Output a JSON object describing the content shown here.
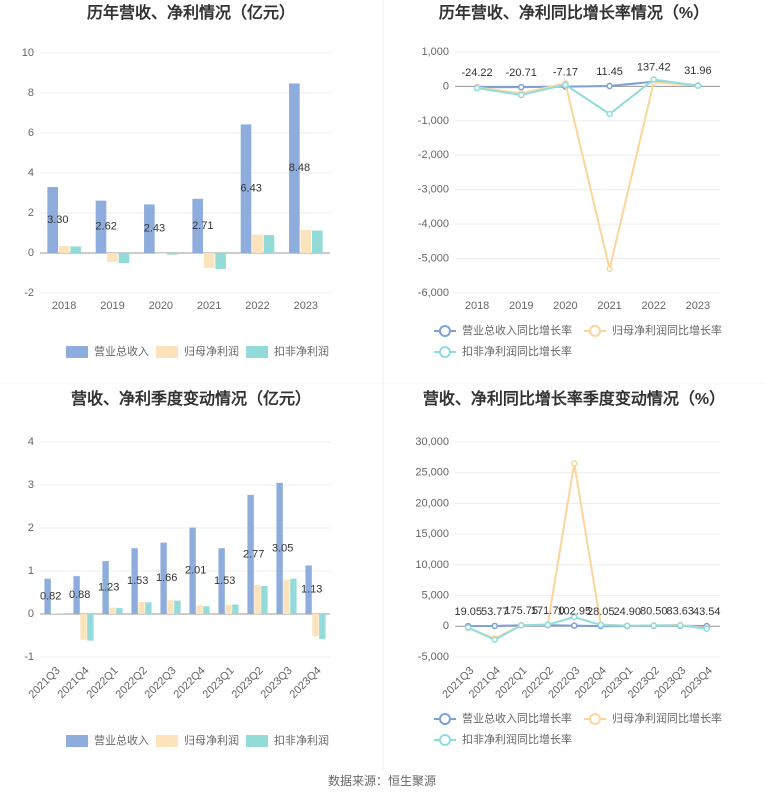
{
  "source": "数据来源：恒生聚源",
  "chart_data": [
    {
      "type": "bar",
      "title": "历年营收、净利情况（亿元）",
      "categories": [
        "2018",
        "2019",
        "2020",
        "2021",
        "2022",
        "2023"
      ],
      "series": [
        {
          "name": "营业总收入",
          "color": "#8eaddc",
          "values": [
            3.3,
            2.62,
            2.43,
            2.71,
            6.43,
            8.48
          ],
          "value_labels": [
            "3.30",
            "2.62",
            "2.43",
            "2.71",
            "6.43",
            "8.48"
          ]
        },
        {
          "name": "归母净利润",
          "color": "#fde3bb",
          "values": [
            0.35,
            -0.45,
            -0.05,
            -0.75,
            0.92,
            1.15
          ]
        },
        {
          "name": "扣非净利润",
          "color": "#92dbd9",
          "values": [
            0.33,
            -0.5,
            -0.08,
            -0.8,
            0.9,
            1.12
          ]
        }
      ],
      "ylim": [
        -2,
        10
      ],
      "yticks": [
        -2,
        0,
        2,
        4,
        6,
        8,
        10
      ],
      "grid": true,
      "legend": "bottom"
    },
    {
      "type": "line",
      "title": "历年营收、净利同比增长率情况（%）",
      "categories": [
        "2018",
        "2019",
        "2020",
        "2021",
        "2022",
        "2023"
      ],
      "series": [
        {
          "name": "营业总收入同比增长率",
          "color": "#7f9fd6",
          "values": [
            -24.22,
            -20.71,
            -7.17,
            11.45,
            137.42,
            31.96
          ]
        },
        {
          "name": "归母净利润同比增长率",
          "color": "#fcd59c",
          "values": [
            -30,
            -200,
            90,
            -5300,
            120,
            25
          ]
        },
        {
          "name": "扣非净利润同比增长率",
          "color": "#8fdcdf",
          "values": [
            -50,
            -250,
            50,
            -800,
            200,
            20
          ]
        }
      ],
      "ylim": [
        -6000,
        1000
      ],
      "yticks": [
        {
          "value": -6000,
          "label": "-6,000"
        },
        {
          "value": -5000,
          "label": "-5,000"
        },
        {
          "value": -4000,
          "label": "-4,000"
        },
        {
          "value": -3000,
          "label": "-3,000"
        },
        {
          "value": -2000,
          "label": "-2,000"
        },
        {
          "value": -1000,
          "label": "-1,000"
        },
        0,
        {
          "value": 1000,
          "label": "1,000"
        }
      ],
      "grid": true,
      "legend": "bottom"
    },
    {
      "type": "bar",
      "title": "营收、净利季度变动情况（亿元）",
      "categories": [
        "2021Q3",
        "2021Q4",
        "2022Q1",
        "2022Q2",
        "2022Q3",
        "2022Q4",
        "2023Q1",
        "2023Q2",
        "2023Q3",
        "2023Q4"
      ],
      "series": [
        {
          "name": "营业总收入",
          "color": "#8eaddc",
          "values": [
            0.82,
            0.88,
            1.23,
            1.53,
            1.66,
            2.01,
            1.53,
            2.77,
            3.05,
            1.13
          ]
        },
        {
          "name": "归母净利润",
          "color": "#fde3bb",
          "values": [
            0.02,
            -0.6,
            0.15,
            0.28,
            0.32,
            0.2,
            0.22,
            0.67,
            0.8,
            -0.52
          ]
        },
        {
          "name": "扣非净利润",
          "color": "#92dbd9",
          "values": [
            0.01,
            -0.62,
            0.14,
            0.27,
            0.31,
            0.18,
            0.22,
            0.65,
            0.82,
            -0.58
          ]
        }
      ],
      "ylim": [
        -1,
        4
      ],
      "yticks": [
        -1,
        0,
        1,
        2,
        3,
        4
      ],
      "grid": true,
      "legend": "bottom"
    },
    {
      "type": "line",
      "title": "营收、净利同比增长率季度变动情况（%）",
      "categories": [
        "2021Q3",
        "2021Q4",
        "2022Q1",
        "2022Q2",
        "2022Q3",
        "2022Q4",
        "2023Q1",
        "2023Q2",
        "2023Q3",
        "2023Q4"
      ],
      "series": [
        {
          "name": "营业总收入同比增长率",
          "color": "#7f9fd6",
          "values": [
            19.05,
            53.77,
            175.75,
            171.7,
            102.95,
            28.05,
            24.9,
            80.5,
            83.63,
            43.54
          ],
          "value_labels": [
            "19.05",
            "53.77",
            "175.75",
            "171.70",
            "102.95",
            "28.05",
            "24.90",
            "80.50",
            "83.63",
            "43.54"
          ]
        },
        {
          "name": "归母净利润同比增长率",
          "color": "#fcd59c",
          "values": [
            -300,
            -2000,
            200,
            300,
            26500,
            300,
            100,
            150,
            200,
            -300
          ]
        },
        {
          "name": "扣非净利润同比增长率",
          "color": "#8fdcdf",
          "values": [
            -200,
            -2200,
            150,
            250,
            1500,
            200,
            80,
            120,
            150,
            -400
          ]
        }
      ],
      "ylim": [
        -5000,
        30000
      ],
      "yticks": [
        {
          "value": -5000,
          "label": "-5,000"
        },
        0,
        {
          "value": 5000,
          "label": "5,000"
        },
        {
          "value": 10000,
          "label": "10,000"
        },
        {
          "value": 15000,
          "label": "15,000"
        },
        {
          "value": 20000,
          "label": "20,000"
        },
        {
          "value": 25000,
          "label": "25,000"
        },
        {
          "value": 30000,
          "label": "30,000"
        }
      ],
      "grid": true,
      "legend": "bottom"
    }
  ]
}
